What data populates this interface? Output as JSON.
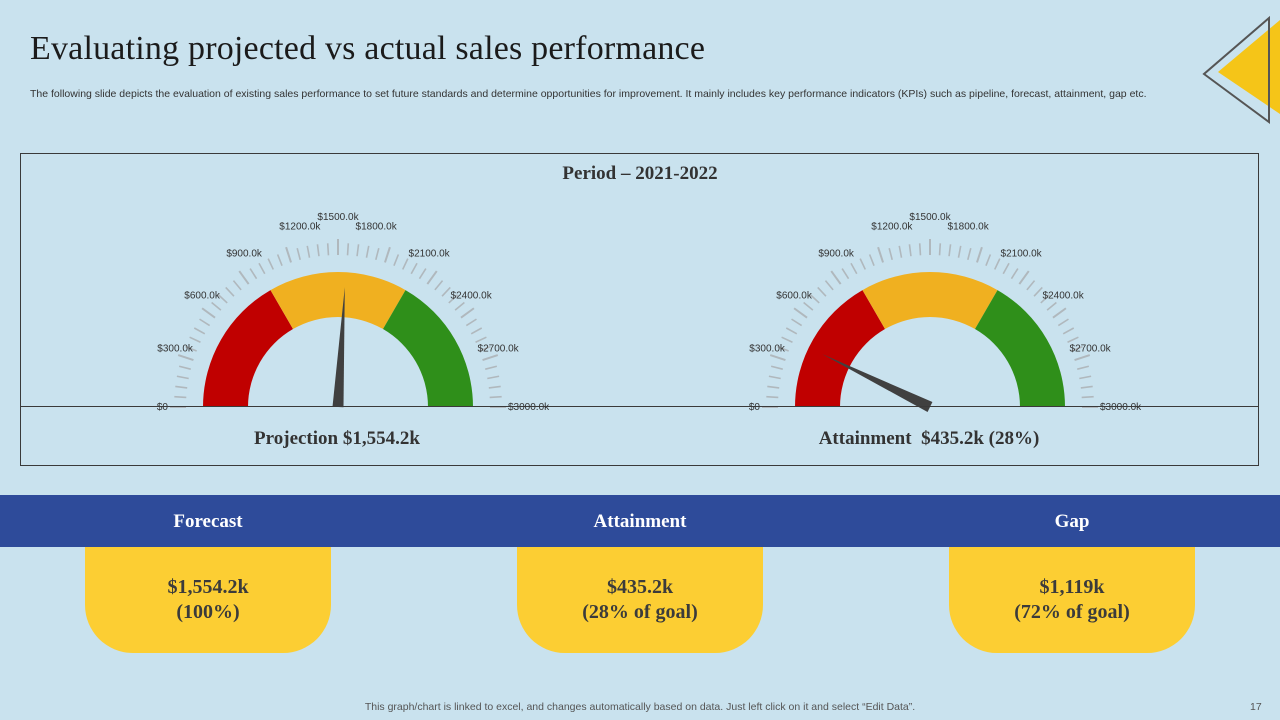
{
  "title": "Evaluating projected vs actual sales performance",
  "subtitle": "The following slide depicts the evaluation of existing sales performance to set future standards and determine opportunities for improvement. It mainly includes key performance indicators (KPIs)  such as pipeline, forecast, attainment, gap etc.",
  "colors": {
    "red": "#c00000",
    "amber": "#f0b020",
    "green": "#2f8f1a",
    "needle": "#404040",
    "band": "#2e4b9a",
    "card": "#fcce33",
    "corner_yellow": "#f5c518"
  },
  "chart_data": [
    {
      "type": "gauge",
      "title": "Period – 2021-2022",
      "min": 0,
      "max": 3000,
      "tick_labels": [
        "$0",
        "$300.0k",
        "$600.0k",
        "$900.0k",
        "$1200.0k",
        "$1500.0k",
        "$1800.0k",
        "$2100.0k",
        "$2400.0k",
        "$2700.0k",
        "$3000.0k"
      ],
      "bands": [
        {
          "name": "red",
          "from": 0,
          "to": 1000
        },
        {
          "name": "amber",
          "from": 1000,
          "to": 2000
        },
        {
          "name": "green",
          "from": 2000,
          "to": 3000
        }
      ],
      "value": 1554.2,
      "caption": "Projection $1,554.2k"
    },
    {
      "type": "gauge",
      "min": 0,
      "max": 3000,
      "tick_labels": [
        "$0",
        "$300.0k",
        "$600.0k",
        "$900.0k",
        "$1200.0k",
        "$1500.0k",
        "$1800.0k",
        "$2100.0k",
        "$2400.0k",
        "$2700.0k",
        "$3000.0k"
      ],
      "bands": [
        {
          "name": "red",
          "from": 0,
          "to": 1000
        },
        {
          "name": "amber",
          "from": 1000,
          "to": 2000
        },
        {
          "name": "green",
          "from": 2000,
          "to": 3000
        }
      ],
      "value": 435.2,
      "caption": "Attainment  $435.2k (28%)"
    }
  ],
  "kpis": [
    {
      "label": "Forecast",
      "value": "$1,554.2k",
      "note": "(100%)"
    },
    {
      "label": "Attainment",
      "value": "$435.2k",
      "note": "(28% of goal)"
    },
    {
      "label": "Gap",
      "value": "$1,119k",
      "note": "(72% of goal)"
    }
  ],
  "footer": "This graph/chart is linked to excel,  and changes automatically based on data. Just left click on it and select “Edit Data”.",
  "page_number": "17"
}
